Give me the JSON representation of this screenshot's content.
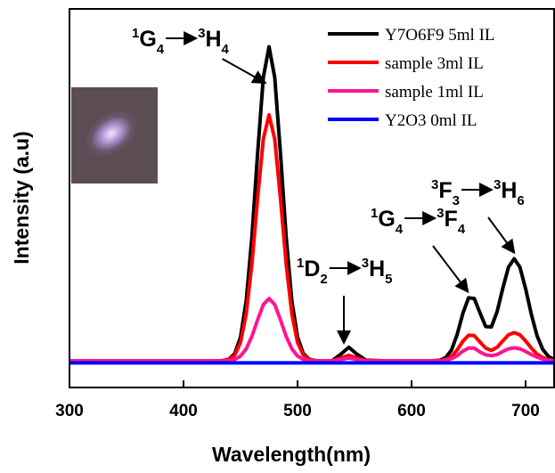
{
  "chart_data": {
    "type": "line",
    "xlabel": "Wavelength(nm)",
    "ylabel": "Intensity (a.u)",
    "x": [
      300,
      350,
      400,
      430,
      435,
      440,
      445,
      450,
      455,
      460,
      465,
      470,
      475,
      480,
      485,
      490,
      495,
      500,
      505,
      510,
      515,
      520,
      530,
      538,
      545,
      552,
      560,
      580,
      600,
      615,
      625,
      630,
      635,
      640,
      645,
      650,
      655,
      660,
      665,
      670,
      675,
      680,
      685,
      690,
      695,
      700,
      705,
      710,
      715,
      720,
      725
    ],
    "series": [
      {
        "name": "Y7O6F9 5ml IL",
        "color": "#000000",
        "values": [
          7,
          7,
          7,
          7,
          7.1,
          7.5,
          9.0,
          13.3,
          22.9,
          39.8,
          61.9,
          81.9,
          90,
          81.9,
          61.9,
          39.8,
          22.9,
          13.3,
          9.0,
          7.5,
          7.1,
          7,
          7,
          8.8,
          10.6,
          8.8,
          7.2,
          7,
          7,
          7,
          7.2,
          7.9,
          9.9,
          14.0,
          19.6,
          23.7,
          23.5,
          19.7,
          16.1,
          16.0,
          20.0,
          26.2,
          31.8,
          34,
          31.8,
          26.1,
          19.4,
          13.7,
          10.1,
          8.2,
          7.4
        ]
      },
      {
        "name": "sample 3ml IL",
        "color": "#ff0000",
        "values": [
          7,
          7,
          7,
          7,
          7.1,
          7.4,
          8.6,
          11.9,
          19.5,
          32.7,
          50,
          65.6,
          72,
          65.6,
          50,
          32.7,
          19.5,
          11.9,
          8.6,
          7.4,
          7.1,
          7,
          7,
          7.8,
          8.5,
          7.8,
          7.1,
          7,
          7,
          7,
          7.1,
          7.4,
          8.2,
          9.9,
          12.2,
          13.8,
          13.7,
          12.0,
          10.4,
          9.8,
          10.6,
          12.3,
          13.9,
          14.5,
          13.9,
          12.3,
          10.4,
          8.8,
          7.9,
          7.3,
          7.1
        ]
      },
      {
        "name": "sample 1ml IL",
        "color": "#ff1493",
        "values": [
          7,
          7,
          7,
          7,
          7,
          7.1,
          7.4,
          8.3,
          10.2,
          13.5,
          17.9,
          21.9,
          23.5,
          21.9,
          17.9,
          13.5,
          10.2,
          8.3,
          7.4,
          7.1,
          7,
          7,
          7,
          7.4,
          7.8,
          7.4,
          7,
          7,
          7,
          7,
          7,
          7.2,
          7.6,
          8.4,
          9.6,
          10.4,
          10.4,
          9.4,
          8.6,
          8.4,
          8.7,
          9.5,
          10.2,
          10.5,
          10.2,
          9.5,
          8.7,
          8.0,
          7.5,
          7.2,
          7.1
        ]
      },
      {
        "name": "Y2O3    0ml IL",
        "color": "#0000ff",
        "values": [
          6.5,
          6.5,
          6.5,
          6.5,
          6.5,
          6.5,
          6.5,
          6.5,
          6.5,
          6.5,
          6.5,
          6.5,
          6.5,
          6.5,
          6.5,
          6.5,
          6.5,
          6.5,
          6.5,
          6.5,
          6.5,
          6.5,
          6.5,
          6.5,
          6.5,
          6.5,
          6.5,
          6.5,
          6.5,
          6.5,
          6.5,
          6.5,
          6.5,
          6.5,
          6.5,
          6.5,
          6.5,
          6.5,
          6.5,
          6.5,
          6.5,
          6.5,
          6.5,
          6.5,
          6.5,
          6.5,
          6.5,
          6.5,
          6.5,
          6.5,
          6.5
        ]
      }
    ],
    "xlim": [
      300,
      725
    ],
    "xticks": [
      300,
      400,
      500,
      600,
      700
    ],
    "ylim": [
      0,
      100
    ],
    "legend": "upper-right",
    "annotations": [
      {
        "from": {
          "sup": "1",
          "main": "G",
          "sub": "4"
        },
        "to": {
          "sup": "3",
          "main": "H",
          "sub": "4"
        }
      },
      {
        "from": {
          "sup": "1",
          "main": "D",
          "sub": "2"
        },
        "to": {
          "sup": "3",
          "main": "H",
          "sub": "5"
        }
      },
      {
        "from": {
          "sup": "1",
          "main": "G",
          "sub": "4"
        },
        "to": {
          "sup": "3",
          "main": "F",
          "sub": "4"
        }
      },
      {
        "from": {
          "sup": "3",
          "main": "F",
          "sub": "3"
        },
        "to": {
          "sup": "3",
          "main": "H",
          "sub": "6"
        }
      }
    ]
  }
}
